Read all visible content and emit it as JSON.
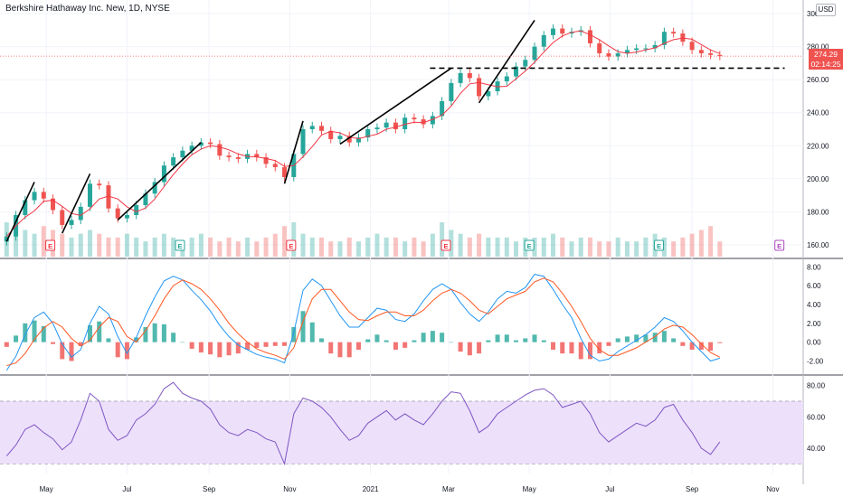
{
  "header": {
    "title": "Berkshire Hathaway Inc. New, 1D, NYSE",
    "currency": "USD"
  },
  "price_tag": {
    "price": "274.29",
    "countdown": "02:14:25",
    "color": "#ef5350"
  },
  "colors": {
    "up": "#26a69a",
    "down": "#ef5350",
    "ma": "#f23645",
    "macd": "#2196f3",
    "signal": "#ff5722",
    "rsi": "#7e57c2",
    "rsi_band": "#ede0fb",
    "earnings_red": "#f23645",
    "earnings_green": "#26a69a",
    "earnings_upcoming": "#ab47bc"
  },
  "chart_data": [
    {
      "type": "candlestick",
      "panel": "price",
      "x": [
        "2020-04-01",
        "2020-04-08",
        "2020-04-15",
        "2020-04-22",
        "2020-04-29",
        "2020-05-06",
        "2020-05-13",
        "2020-05-20",
        "2020-05-27",
        "2020-06-03",
        "2020-06-10",
        "2020-06-17",
        "2020-06-24",
        "2020-07-01",
        "2020-07-08",
        "2020-07-15",
        "2020-07-22",
        "2020-07-29",
        "2020-08-05",
        "2020-08-12",
        "2020-08-19",
        "2020-08-26",
        "2020-09-02",
        "2020-09-09",
        "2020-09-16",
        "2020-09-23",
        "2020-09-30",
        "2020-10-07",
        "2020-10-14",
        "2020-10-21",
        "2020-10-28",
        "2020-11-04",
        "2020-11-11",
        "2020-11-18",
        "2020-11-25",
        "2020-12-02",
        "2020-12-09",
        "2020-12-16",
        "2020-12-23",
        "2020-12-30",
        "2021-01-06",
        "2021-01-13",
        "2021-01-20",
        "2021-01-27",
        "2021-02-03",
        "2021-02-10",
        "2021-02-17",
        "2021-02-24",
        "2021-03-03",
        "2021-03-10",
        "2021-03-17",
        "2021-03-24",
        "2021-03-31",
        "2021-04-07",
        "2021-04-14",
        "2021-04-21",
        "2021-04-28",
        "2021-05-05",
        "2021-05-12",
        "2021-05-19",
        "2021-05-26",
        "2021-06-02",
        "2021-06-09",
        "2021-06-16",
        "2021-06-23",
        "2021-06-30",
        "2021-07-07",
        "2021-07-14",
        "2021-07-21",
        "2021-07-28",
        "2021-08-04",
        "2021-08-11",
        "2021-08-18",
        "2021-08-25",
        "2021-09-01",
        "2021-09-08",
        "2021-09-15",
        "2021-09-22"
      ],
      "close": [
        165,
        178,
        187,
        192,
        188,
        181,
        172,
        175,
        183,
        197,
        196,
        182,
        176,
        178,
        184,
        191,
        198,
        208,
        213,
        217,
        220,
        222,
        221,
        214,
        213,
        212,
        215,
        213,
        209,
        207,
        201,
        215,
        230,
        232,
        229,
        224,
        226,
        222,
        225,
        230,
        231,
        234,
        230,
        237,
        236,
        233,
        238,
        247,
        258,
        264,
        261,
        250,
        253,
        259,
        262,
        268,
        272,
        280,
        287,
        291,
        288,
        289,
        290,
        282,
        276,
        274,
        276,
        278,
        279,
        279,
        281,
        289,
        288,
        283,
        278,
        276,
        275,
        274.29
      ],
      "xlabel": "",
      "ylabel": "",
      "ylim": [
        155,
        305
      ],
      "y_ticks": [
        "160.00",
        "180.00",
        "200.00",
        "220.00",
        "240.00",
        "260.00",
        "280.00",
        "300.00"
      ],
      "x_tick_labels": [
        "May",
        "Jul",
        "Sep",
        "Nov",
        "2021",
        "Mar",
        "May",
        "Jul",
        "Sep",
        "Nov"
      ],
      "x_tick_dates": [
        "2020-05-01",
        "2020-07-01",
        "2020-09-01",
        "2020-11-01",
        "2021-01-01",
        "2021-03-01",
        "2021-05-01",
        "2021-07-01",
        "2021-09-01",
        "2021-11-01"
      ],
      "support_level": 267,
      "trend_lines": [
        {
          "from": [
            "2020-04-01",
            162
          ],
          "to": [
            "2020-04-22",
            198
          ]
        },
        {
          "from": [
            "2020-05-13",
            167
          ],
          "to": [
            "2020-06-03",
            203
          ]
        },
        {
          "from": [
            "2020-06-24",
            175
          ],
          "to": [
            "2020-08-26",
            222
          ]
        },
        {
          "from": [
            "2020-10-28",
            197
          ],
          "to": [
            "2020-11-11",
            235
          ]
        },
        {
          "from": [
            "2020-12-09",
            221
          ],
          "to": [
            "2021-03-03",
            267
          ]
        },
        {
          "from": [
            "2021-03-24",
            246
          ],
          "to": [
            "2021-05-05",
            296
          ]
        }
      ],
      "earnings": [
        {
          "date": "2020-05-04",
          "kind": "red"
        },
        {
          "date": "2020-08-10",
          "kind": "green"
        },
        {
          "date": "2020-11-02",
          "kind": "red"
        },
        {
          "date": "2021-02-27",
          "kind": "red"
        },
        {
          "date": "2021-05-01",
          "kind": "green"
        },
        {
          "date": "2021-08-07",
          "kind": "green"
        },
        {
          "date": "2021-11-06",
          "kind": "upcoming"
        }
      ],
      "earnings_label": "E",
      "volume": [
        9,
        8,
        7,
        6,
        8,
        7,
        6,
        5,
        6,
        7,
        6,
        5,
        5,
        6,
        5,
        4,
        5,
        6,
        5,
        4,
        5,
        6,
        5,
        4,
        5,
        4,
        5,
        4,
        5,
        6,
        8,
        9,
        6,
        5,
        5,
        4,
        4,
        5,
        4,
        5,
        6,
        5,
        5,
        4,
        5,
        4,
        6,
        9,
        7,
        6,
        5,
        6,
        5,
        5,
        5,
        4,
        5,
        5,
        5,
        6,
        5,
        4,
        5,
        5,
        4,
        4,
        5,
        4,
        4,
        5,
        6,
        5,
        4,
        5,
        6,
        7,
        8,
        4
      ]
    },
    {
      "type": "line",
      "panel": "macd",
      "series": [
        {
          "role": "macd",
          "values": [
            -3.0,
            -1.5,
            0.8,
            2.6,
            3.2,
            2.0,
            -0.2,
            -1.6,
            -0.8,
            2.0,
            3.8,
            3.0,
            0.6,
            -1.2,
            0.5,
            2.8,
            4.8,
            6.5,
            7.0,
            6.6,
            5.5,
            4.5,
            3.3,
            1.8,
            0.6,
            -0.3,
            -0.8,
            -1.3,
            -1.6,
            -1.8,
            -2.2,
            1.0,
            5.5,
            6.7,
            6.0,
            4.4,
            2.8,
            1.6,
            1.6,
            2.6,
            3.6,
            3.4,
            2.4,
            2.2,
            3.0,
            4.4,
            5.6,
            6.2,
            5.6,
            4.2,
            3.0,
            2.2,
            3.2,
            4.6,
            5.4,
            5.2,
            5.8,
            7.2,
            7.0,
            5.6,
            4.0,
            2.6,
            0.4,
            -1.4,
            -2.0,
            -1.8,
            -1.0,
            -0.4,
            0.2,
            0.8,
            1.6,
            2.6,
            2.2,
            1.2,
            0.0,
            -1.0,
            -2.0,
            -1.7
          ]
        },
        {
          "role": "signal",
          "values": [
            -2.5,
            -2.2,
            -1.2,
            0.3,
            1.5,
            2.2,
            1.6,
            0.4,
            -0.4,
            0.2,
            1.6,
            2.6,
            2.2,
            0.6,
            0.0,
            1.2,
            2.8,
            4.6,
            6.0,
            6.6,
            6.2,
            5.6,
            4.6,
            3.4,
            2.0,
            0.9,
            0.0,
            -0.7,
            -1.1,
            -1.4,
            -1.8,
            -0.6,
            2.2,
            4.6,
            5.6,
            5.6,
            4.4,
            3.2,
            2.4,
            2.3,
            2.8,
            3.2,
            3.2,
            2.8,
            2.8,
            3.4,
            4.4,
            5.2,
            5.6,
            5.2,
            4.4,
            3.4,
            3.0,
            3.8,
            4.6,
            5.0,
            5.4,
            6.4,
            6.8,
            6.4,
            5.2,
            3.8,
            2.2,
            0.4,
            -0.8,
            -1.4,
            -1.4,
            -1.0,
            -0.6,
            0.0,
            0.6,
            1.4,
            1.8,
            1.6,
            0.8,
            -0.2,
            -1.1,
            -1.6
          ]
        }
      ],
      "ylim": [
        -3.2,
        8.6
      ],
      "y_ticks": [
        "8.00",
        "6.00",
        "4.00",
        "2.00",
        "0.00",
        "-2.00"
      ]
    },
    {
      "type": "line",
      "panel": "rsi",
      "series": [
        {
          "role": "rsi",
          "values": [
            35,
            42,
            52,
            55,
            50,
            46,
            39,
            44,
            58,
            75,
            70,
            52,
            45,
            48,
            58,
            62,
            68,
            78,
            82,
            75,
            72,
            70,
            65,
            55,
            50,
            48,
            52,
            50,
            46,
            44,
            30,
            62,
            72,
            70,
            66,
            60,
            52,
            45,
            48,
            56,
            60,
            64,
            58,
            62,
            58,
            55,
            62,
            70,
            76,
            75,
            64,
            50,
            54,
            62,
            66,
            70,
            74,
            77,
            78,
            74,
            66,
            68,
            70,
            62,
            50,
            44,
            48,
            52,
            56,
            54,
            58,
            66,
            68,
            58,
            50,
            40,
            36,
            44
          ]
        }
      ],
      "ylim": [
        25,
        85
      ],
      "y_ticks": [
        "80.00",
        "60.00",
        "40.00"
      ],
      "bands": [
        30,
        70
      ]
    }
  ]
}
